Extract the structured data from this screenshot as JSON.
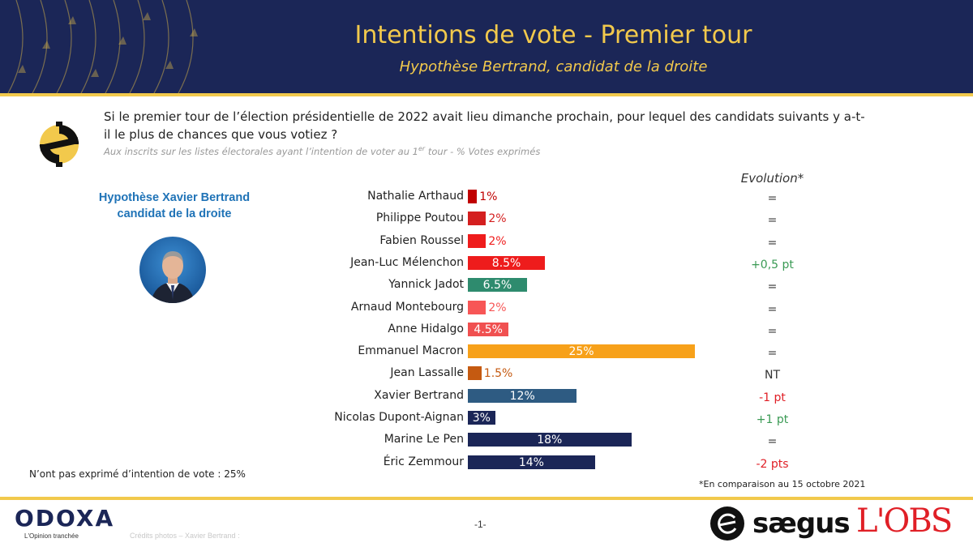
{
  "header": {
    "title": "Intentions de vote - Premier tour",
    "subtitle": "Hypothèse Bertrand, candidat de la droite"
  },
  "question": {
    "text": "Si le premier tour de l’élection présidentielle de 2022 avait lieu dimanche prochain, pour lequel des candidats suivants y a-t-il le plus de chances que vous votiez ?",
    "subtext_pre": "Aux inscrits sur les listes électorales ayant l’intention de voter au 1",
    "subtext_sup": "er",
    "subtext_post": " tour  - % Votes exprimés"
  },
  "hypothesis": {
    "line1": "Hypothèse Xavier Bertrand",
    "line2": "candidat de la droite"
  },
  "chart_data": {
    "type": "bar",
    "orientation": "horizontal",
    "unit": "%",
    "evolution_header": "Evolution*",
    "categories": [
      "Nathalie Arthaud",
      "Philippe Poutou",
      "Fabien Roussel",
      "Jean-Luc Mélenchon",
      "Yannick Jadot",
      "Arnaud Montebourg",
      "Anne Hidalgo",
      "Emmanuel Macron",
      "Jean Lassalle",
      "Xavier Bertrand",
      "Nicolas Dupont-Aignan",
      "Marine Le Pen",
      "Éric Zemmour"
    ],
    "values": [
      1,
      2,
      2,
      8.5,
      6.5,
      2,
      4.5,
      25,
      1.5,
      12,
      3,
      18,
      14
    ],
    "labels": [
      "1%",
      "2%",
      "2%",
      "8.5%",
      "6.5%",
      "2%",
      "4.5%",
      "25%",
      "1.5%",
      "12%",
      "3%",
      "18%",
      "14%"
    ],
    "colors": [
      "#c00000",
      "#d41f1f",
      "#ef1c1c",
      "#ee1c1c",
      "#2e8b6e",
      "#f75656",
      "#f05050",
      "#f7a11a",
      "#c55a11",
      "#2e5b82",
      "#1b2657",
      "#1b2657",
      "#1b2657"
    ],
    "evolution": [
      "=",
      "=",
      "=",
      "+0,5 pt",
      "=",
      "=",
      "=",
      "=",
      "NT",
      "-1 pt",
      "+1 pt",
      "=",
      "-2 pts"
    ],
    "evolution_colors": [
      "#333333",
      "#333333",
      "#333333",
      "#3a9a54",
      "#333333",
      "#333333",
      "#333333",
      "#333333",
      "#333333",
      "#e01f26",
      "#3a9a54",
      "#333333",
      "#e01f26"
    ]
  },
  "notes": {
    "no_intention": "N’ont pas exprimé d’intention de vote : 25%",
    "comparison": "*En comparaison au 15 octobre 2021"
  },
  "footer": {
    "odoxa": "ODOXA",
    "odoxa_tagline": "L'Opinion tranchée",
    "credits": "Crédits photos – Xavier Bertrand :",
    "page": "-1-",
    "saegus": "sægus",
    "obs": "L'OBS"
  },
  "colors": {
    "navy": "#1b2657",
    "gold": "#f2c94c",
    "link_blue": "#1f73b7"
  }
}
